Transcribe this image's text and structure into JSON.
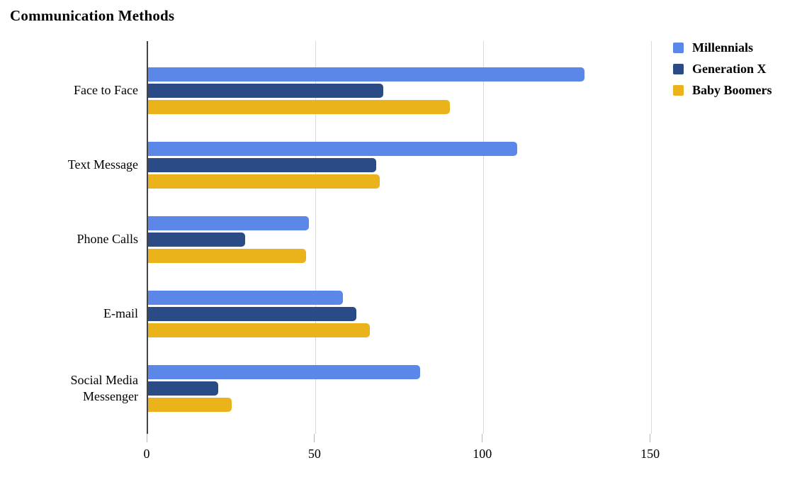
{
  "title": "Communication Methods",
  "chart_data": {
    "type": "bar",
    "orientation": "horizontal",
    "title": "Communication Methods",
    "xlabel": "",
    "ylabel": "",
    "categories": [
      "Face to Face",
      "Text Message",
      "Phone Calls",
      "E-mail",
      "Social Media Messenger"
    ],
    "series": [
      {
        "name": "Millennials",
        "color": "#5b87e8",
        "values": [
          130,
          110,
          48,
          58,
          81
        ]
      },
      {
        "name": "Generation X",
        "color": "#2b4b87",
        "values": [
          70,
          68,
          29,
          62,
          21
        ]
      },
      {
        "name": "Baby Boomers",
        "color": "#eab31c",
        "values": [
          90,
          69,
          47,
          66,
          25
        ]
      }
    ],
    "x_ticks": [
      0,
      50,
      100,
      150
    ],
    "xlim": [
      0,
      150.5
    ],
    "grid": true,
    "legend_position": "top-right"
  },
  "colors": {
    "axis_line": "#424242",
    "gridline": "#dadada",
    "tick": "#b7b7b7",
    "text": "#000000",
    "background": "#ffffff"
  }
}
